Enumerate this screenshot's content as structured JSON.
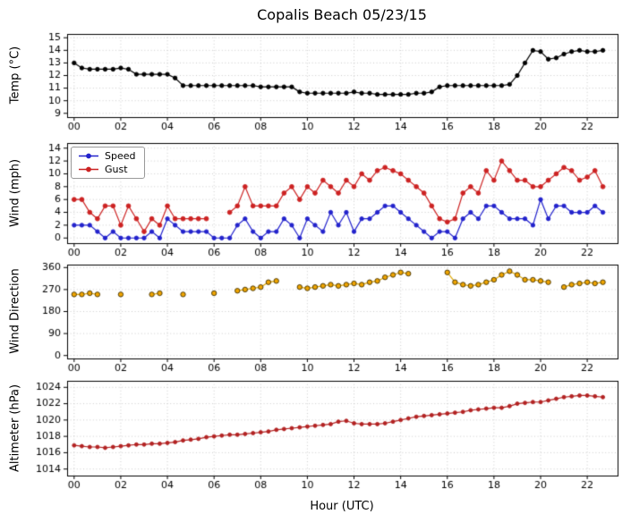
{
  "title": "Copalis Beach 05/23/15",
  "xlabel": "Hour (UTC)",
  "chart_data": {
    "shared_x_axis": {
      "xlim": [
        -0.3,
        23.3
      ],
      "xticks": [
        0,
        2,
        4,
        6,
        8,
        10,
        12,
        14,
        16,
        18,
        20,
        22
      ],
      "xtick_labels": [
        "00",
        "02",
        "04",
        "06",
        "08",
        "10",
        "12",
        "14",
        "16",
        "18",
        "20",
        "22"
      ]
    },
    "subplots": [
      {
        "type": "line",
        "ylabel": "Temp (°C)",
        "ylim": [
          8.7,
          15.3
        ],
        "yticks": [
          9,
          10,
          11,
          12,
          13,
          14,
          15
        ],
        "grid": true,
        "x": [
          0,
          0.33,
          0.67,
          1,
          1.33,
          1.67,
          2,
          2.33,
          2.67,
          3,
          3.33,
          3.67,
          4,
          4.33,
          4.67,
          5,
          5.33,
          5.67,
          6,
          6.33,
          6.67,
          7,
          7.33,
          7.67,
          8,
          8.33,
          8.67,
          9,
          9.33,
          9.67,
          10,
          10.33,
          10.67,
          11,
          11.33,
          11.67,
          12,
          12.33,
          12.67,
          13,
          13.33,
          13.67,
          14,
          14.33,
          14.67,
          15,
          15.33,
          15.67,
          16,
          16.33,
          16.67,
          17,
          17.33,
          17.67,
          18,
          18.33,
          18.67,
          19,
          19.33,
          19.67,
          20,
          20.33,
          20.67,
          21,
          21.33,
          21.67,
          22,
          22.33,
          22.67
        ],
        "series": [
          {
            "name": "Temp",
            "color": "#000000",
            "marker": 2.2,
            "y": [
              13.0,
              12.6,
              12.5,
              12.5,
              12.5,
              12.5,
              12.6,
              12.5,
              12.1,
              12.1,
              12.1,
              12.1,
              12.1,
              11.8,
              11.2,
              11.2,
              11.2,
              11.2,
              11.2,
              11.2,
              11.2,
              11.2,
              11.2,
              11.2,
              11.1,
              11.1,
              11.1,
              11.1,
              11.1,
              10.7,
              10.6,
              10.6,
              10.6,
              10.6,
              10.6,
              10.6,
              10.7,
              10.6,
              10.6,
              10.5,
              10.5,
              10.5,
              10.5,
              10.5,
              10.6,
              10.6,
              10.7,
              11.1,
              11.2,
              11.2,
              11.2,
              11.2,
              11.2,
              11.2,
              11.2,
              11.2,
              11.3,
              12.0,
              13.0,
              14.0,
              13.9,
              13.3,
              13.4,
              13.7,
              13.9,
              14.0,
              13.9,
              13.9,
              14.0
            ]
          }
        ]
      },
      {
        "type": "line",
        "ylabel": "Wind (mph)",
        "ylim": [
          -0.8,
          14.8
        ],
        "yticks": [
          0,
          2,
          4,
          6,
          8,
          10,
          12,
          14
        ],
        "grid": true,
        "legend_position": "upper-left",
        "x": [
          0,
          0.33,
          0.67,
          1,
          1.33,
          1.67,
          2,
          2.33,
          2.67,
          3,
          3.33,
          3.67,
          4,
          4.33,
          4.67,
          5,
          5.33,
          5.67,
          6,
          6.33,
          6.67,
          7,
          7.33,
          7.67,
          8,
          8.33,
          8.67,
          9,
          9.33,
          9.67,
          10,
          10.33,
          10.67,
          11,
          11.33,
          11.67,
          12,
          12.33,
          12.67,
          13,
          13.33,
          13.67,
          14,
          14.33,
          14.67,
          15,
          15.33,
          15.67,
          16,
          16.33,
          16.67,
          17,
          17.33,
          17.67,
          18,
          18.33,
          18.67,
          19,
          19.33,
          19.67,
          20,
          20.33,
          20.67,
          21,
          21.33,
          21.67,
          22,
          22.33,
          22.67
        ],
        "series": [
          {
            "name": "Speed",
            "color": "#2222cc",
            "marker": 2.2,
            "y": [
              2,
              2,
              2,
              1,
              0,
              1,
              0,
              0,
              0,
              0,
              1,
              0,
              3,
              2,
              1,
              1,
              1,
              1,
              0,
              0,
              0,
              2,
              3,
              1,
              0,
              1,
              1,
              3,
              2,
              0,
              3,
              2,
              1,
              4,
              2,
              4,
              1,
              3,
              3,
              4,
              5,
              5,
              4,
              3,
              2,
              1,
              0,
              1,
              1,
              0,
              3,
              4,
              3,
              5,
              5,
              4,
              3,
              3,
              3,
              2,
              6,
              3,
              5,
              5,
              4,
              4,
              4,
              5,
              4
            ]
          },
          {
            "name": "Gust",
            "color": "#cc2222",
            "marker": 2.4,
            "y": [
              6,
              6,
              4,
              3,
              5,
              5,
              2,
              5,
              3,
              1,
              3,
              2,
              5,
              3,
              3,
              3,
              3,
              3,
              null,
              null,
              4,
              5,
              8,
              5,
              5,
              5,
              5,
              7,
              8,
              6,
              8,
              7,
              9,
              8,
              7,
              9,
              8,
              10,
              9,
              10.5,
              11,
              10.5,
              10,
              9,
              8,
              7,
              5,
              3,
              2.5,
              3,
              7,
              8,
              7,
              10.5,
              9,
              12,
              10.5,
              9,
              9,
              8,
              8,
              9,
              10,
              11,
              10.5,
              9,
              9.5,
              10.5,
              8
            ]
          }
        ]
      },
      {
        "type": "scatter",
        "ylabel": "Wind Direction",
        "ylim": [
          -12,
          372
        ],
        "yticks": [
          0,
          90,
          180,
          270,
          360
        ],
        "grid": true,
        "x": [
          0,
          0.33,
          0.67,
          1,
          2,
          3.33,
          3.67,
          4.67,
          6,
          7,
          7.33,
          7.67,
          8,
          8.33,
          8.67,
          9.67,
          10,
          10.33,
          10.67,
          11,
          11.33,
          11.67,
          12,
          12.33,
          12.67,
          13,
          13.33,
          13.67,
          14,
          14.33,
          16,
          16.33,
          16.67,
          17,
          17.33,
          17.67,
          18,
          18.33,
          18.67,
          19,
          19.33,
          19.67,
          20,
          20.33,
          21,
          21.33,
          21.67,
          22,
          22.33,
          22.67
        ],
        "series": [
          {
            "name": "Direction (deg)",
            "color": "#e0a800",
            "fill": "#f0a500",
            "edge": "#403000",
            "marker": 2.7,
            "max_gap": 0.45,
            "y": [
              250,
              250,
              255,
              250,
              250,
              250,
              255,
              250,
              255,
              265,
              270,
              275,
              280,
              300,
              305,
              280,
              275,
              280,
              285,
              290,
              285,
              290,
              295,
              290,
              300,
              305,
              320,
              330,
              340,
              335,
              340,
              300,
              290,
              285,
              290,
              300,
              310,
              330,
              345,
              330,
              310,
              310,
              305,
              300,
              280,
              290,
              295,
              300,
              295,
              300
            ]
          }
        ]
      },
      {
        "type": "line",
        "ylabel": "Altimeter (hPa)",
        "ylim": [
          1013.2,
          1024.8
        ],
        "yticks": [
          1014,
          1016,
          1018,
          1020,
          1022,
          1024
        ],
        "grid": true,
        "x": [
          0,
          0.33,
          0.67,
          1,
          1.33,
          1.67,
          2,
          2.33,
          2.67,
          3,
          3.33,
          3.67,
          4,
          4.33,
          4.67,
          5,
          5.33,
          5.67,
          6,
          6.33,
          6.67,
          7,
          7.33,
          7.67,
          8,
          8.33,
          8.67,
          9,
          9.33,
          9.67,
          10,
          10.33,
          10.67,
          11,
          11.33,
          11.67,
          12,
          12.33,
          12.67,
          13,
          13.33,
          13.67,
          14,
          14.33,
          14.67,
          15,
          15.33,
          15.67,
          16,
          16.33,
          16.67,
          17,
          17.33,
          17.67,
          18,
          18.33,
          18.67,
          19,
          19.33,
          19.67,
          20,
          20.33,
          20.67,
          21,
          21.33,
          21.67,
          22,
          22.33,
          22.67
        ],
        "series": [
          {
            "name": "Altimeter",
            "color": "#b22222",
            "marker": 2.0,
            "y": [
              1016.9,
              1016.8,
              1016.7,
              1016.7,
              1016.6,
              1016.7,
              1016.8,
              1016.9,
              1017.0,
              1017.0,
              1017.1,
              1017.1,
              1017.2,
              1017.3,
              1017.5,
              1017.6,
              1017.7,
              1017.9,
              1018.0,
              1018.1,
              1018.2,
              1018.2,
              1018.3,
              1018.4,
              1018.5,
              1018.6,
              1018.8,
              1018.9,
              1019.0,
              1019.1,
              1019.2,
              1019.3,
              1019.4,
              1019.5,
              1019.8,
              1019.9,
              1019.6,
              1019.5,
              1019.5,
              1019.5,
              1019.6,
              1019.8,
              1020.0,
              1020.2,
              1020.4,
              1020.5,
              1020.6,
              1020.7,
              1020.8,
              1020.9,
              1021.0,
              1021.2,
              1021.3,
              1021.4,
              1021.5,
              1021.5,
              1021.7,
              1022.0,
              1022.1,
              1022.2,
              1022.2,
              1022.4,
              1022.6,
              1022.8,
              1022.9,
              1023.0,
              1023.0,
              1022.9,
              1022.8
            ]
          }
        ]
      }
    ]
  }
}
